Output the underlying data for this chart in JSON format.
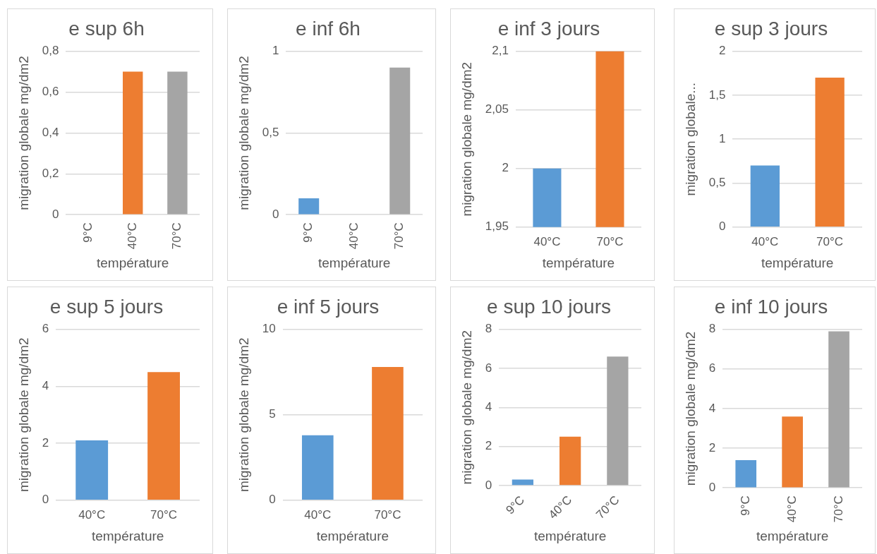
{
  "chart_data": [
    {
      "type": "bar",
      "title": "e sup 6h",
      "xlabel": "température",
      "ylabel": "migration globale mg/dm2",
      "categories": [
        "9°C",
        "40°C",
        "70°C"
      ],
      "values": [
        0,
        0.7,
        0.7
      ],
      "colors": [
        "#5b9bd5",
        "#ed7d31",
        "#a5a5a5"
      ],
      "ylim": [
        0,
        0.8
      ],
      "yticks": [
        0,
        {
          "value": 0.2,
          "label": "0,2"
        },
        {
          "value": 0.4,
          "label": "0,4"
        },
        {
          "value": 0.6,
          "label": "0,6"
        },
        {
          "value": 0.8,
          "label": "0,8"
        }
      ],
      "grid": "y",
      "legend": false
    },
    {
      "type": "bar",
      "title": "e inf 6h",
      "xlabel": "température",
      "ylabel": "migration globale mg/dm2",
      "categories": [
        "9°C",
        "40°C",
        "70°C"
      ],
      "values": [
        0.1,
        0,
        0.9
      ],
      "colors": [
        "#5b9bd5",
        "#ed7d31",
        "#a5a5a5"
      ],
      "ylim": [
        0,
        1
      ],
      "yticks": [
        0,
        {
          "value": 0.5,
          "label": "0,5"
        },
        1
      ],
      "grid": "y",
      "legend": false
    },
    {
      "type": "bar",
      "title": "e inf 3 jours",
      "xlabel": "température",
      "ylabel": "migration globale mg/dm2",
      "categories": [
        "40°C",
        "70°C"
      ],
      "values": [
        2,
        2.1
      ],
      "colors": [
        "#5b9bd5",
        "#ed7d31"
      ],
      "ylim": [
        1.95,
        2.1
      ],
      "yticks": [
        {
          "value": 1.95,
          "label": "1,95"
        },
        2,
        {
          "value": 2.05,
          "label": "2,05"
        },
        {
          "value": 2.1,
          "label": "2,1"
        }
      ],
      "grid": "y",
      "legend": false
    },
    {
      "type": "bar",
      "title": "e sup 3 jours",
      "xlabel": "température",
      "ylabel": "migration globale...",
      "categories": [
        "40°C",
        "70°C"
      ],
      "values": [
        0.7,
        1.7
      ],
      "colors": [
        "#5b9bd5",
        "#ed7d31"
      ],
      "ylim": [
        0,
        2
      ],
      "yticks": [
        0,
        {
          "value": 0.5,
          "label": "0,5"
        },
        1,
        {
          "value": 1.5,
          "label": "1,5"
        },
        2
      ],
      "grid": "y",
      "legend": false
    },
    {
      "type": "bar",
      "title": "e sup 5 jours",
      "xlabel": "température",
      "ylabel": "migration globale mg/dm2",
      "categories": [
        "40°C",
        "70°C"
      ],
      "values": [
        2.1,
        4.5
      ],
      "colors": [
        "#5b9bd5",
        "#ed7d31"
      ],
      "ylim": [
        0,
        6
      ],
      "yticks": [
        0,
        2,
        4,
        6
      ],
      "grid": "y",
      "legend": false
    },
    {
      "type": "bar",
      "title": "e inf 5 jours",
      "xlabel": "température",
      "ylabel": "migration globale mg/dm2",
      "categories": [
        "40°C",
        "70°C"
      ],
      "values": [
        3.8,
        7.8
      ],
      "colors": [
        "#5b9bd5",
        "#ed7d31"
      ],
      "ylim": [
        0,
        10
      ],
      "yticks": [
        0,
        5,
        10
      ],
      "grid": "y",
      "legend": false
    },
    {
      "type": "bar",
      "title": "e sup 10 jours",
      "xlabel": "température",
      "ylabel": "migration globale mg/dm2",
      "categories": [
        "9°C",
        "40°C",
        "70°C"
      ],
      "values": [
        0.3,
        2.5,
        6.6
      ],
      "colors": [
        "#5b9bd5",
        "#ed7d31",
        "#a5a5a5"
      ],
      "ylim": [
        0,
        8
      ],
      "yticks": [
        0,
        2,
        4,
        6,
        8
      ],
      "grid": "y",
      "legend": false
    },
    {
      "type": "bar",
      "title": "e inf 10 jours",
      "xlabel": "température",
      "ylabel": "migration globale mg/dm2",
      "categories": [
        "9°C",
        "40°C",
        "70°C"
      ],
      "values": [
        1.4,
        3.6,
        7.9
      ],
      "colors": [
        "#5b9bd5",
        "#ed7d31",
        "#a5a5a5"
      ],
      "ylim": [
        0,
        8
      ],
      "yticks": [
        0,
        2,
        4,
        6,
        8
      ],
      "grid": "y",
      "legend": false
    }
  ]
}
